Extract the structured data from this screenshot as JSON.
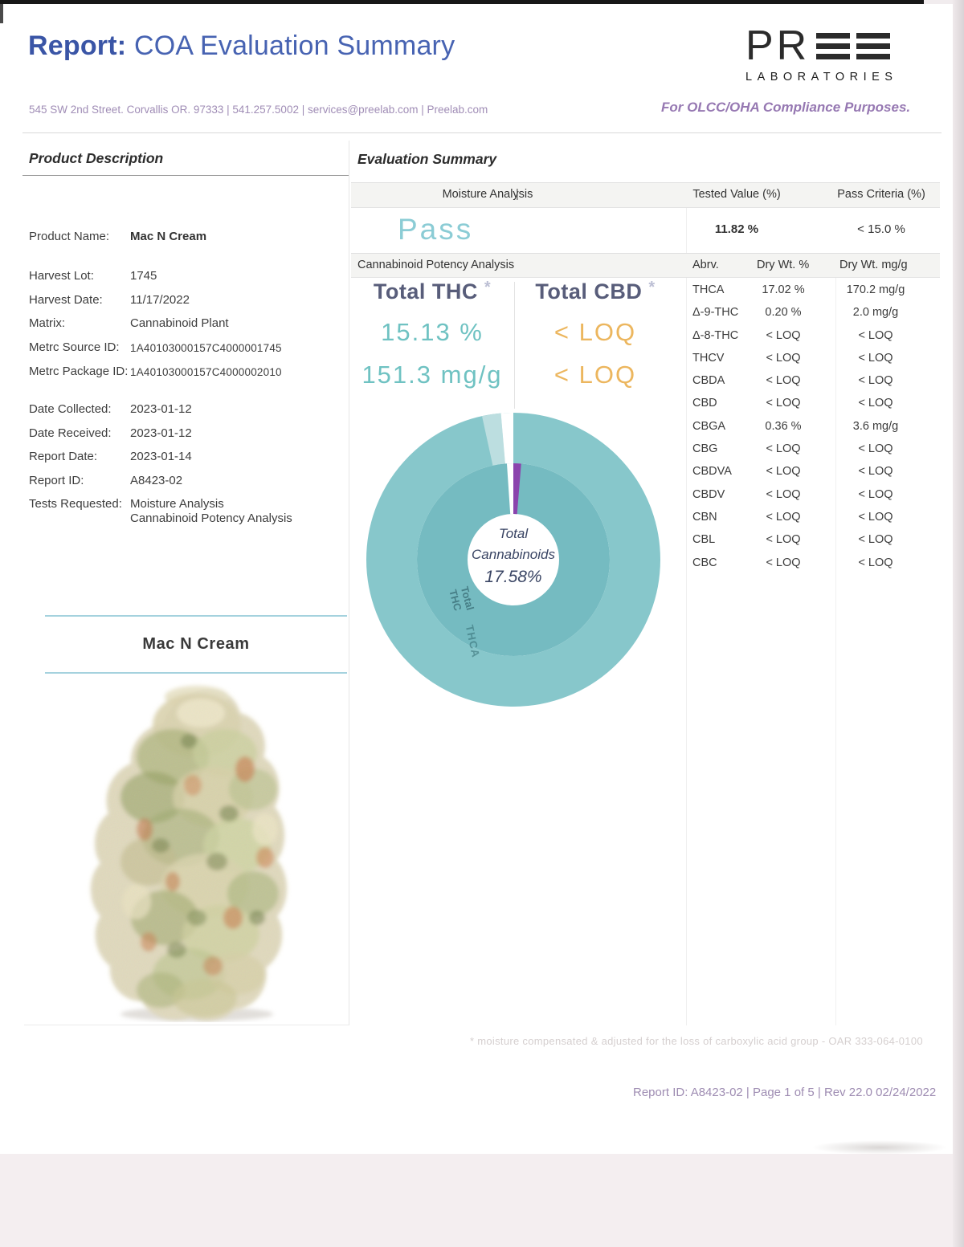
{
  "header": {
    "report_label": "Report:",
    "report_title": "COA Evaluation Summary",
    "address": "545 SW 2nd Street. Corvallis OR. 97333  |  541.257.5002  | services@preelab.com  |  Preelab.com",
    "compliance": "For OLCC/OHA Compliance Purposes.",
    "logo": {
      "letters": "PR",
      "sub": "LABORATORIES"
    }
  },
  "product": {
    "section_title": "Product Description",
    "fields": [
      {
        "label": "Product Name:",
        "value": "Mac N Cream",
        "bold": true
      },
      {
        "label": "Harvest Lot:",
        "value": "1745",
        "gap": 1
      },
      {
        "label": "Harvest Date:",
        "value": "11/17/2022"
      },
      {
        "label": "Matrix:",
        "value": "Cannabinoid Plant"
      },
      {
        "label": "Metrc Source ID:",
        "value": "1A40103000157C4000001745",
        "small": true
      },
      {
        "label": "Metrc Package ID:",
        "value": "1A40103000157C4000002010",
        "small": true
      },
      {
        "label": "Date Collected:",
        "value": "2023-01-12",
        "gap": 2
      },
      {
        "label": "Date Received:",
        "value": "2023-01-12"
      },
      {
        "label": "Report Date:",
        "value": "2023-01-14"
      },
      {
        "label": "Report ID:",
        "value": "A8423-02"
      },
      {
        "label": "Tests Requested:",
        "value": "Moisture Analysis\nCannabinoid Potency Analysis"
      }
    ],
    "photo_title": "Mac N Cream"
  },
  "evaluation": {
    "section_title": "Evaluation Summary",
    "moisture": {
      "label": "Moisture Analysis",
      "separator": "|",
      "tested_header": "Tested Value (%)",
      "criteria_header": "Pass Criteria (%)",
      "result": "Pass",
      "tested_value": "11.82 %",
      "pass_criteria": "< 15.0 %"
    },
    "potency": {
      "label": "Cannabinoid Potency Analysis",
      "abrv_header": "Abrv.",
      "dry_pct_header": "Dry Wt. %",
      "dry_mgg_header": "Dry Wt. mg/g",
      "total_thc": {
        "label": "Total THC",
        "star": "*",
        "pct": "15.13 %",
        "mgg": "151.3 mg/g"
      },
      "total_cbd": {
        "label": "Total CBD",
        "star": "*",
        "pct": "< LOQ",
        "mgg": "< LOQ"
      },
      "rows": [
        {
          "abrv": "THCA",
          "pct": "17.02 %",
          "mgg": "170.2 mg/g"
        },
        {
          "abrv": "Δ-9-THC",
          "pct": "0.20 %",
          "mgg": "2.0 mg/g"
        },
        {
          "abrv": "Δ-8-THC",
          "pct": "< LOQ",
          "mgg": "< LOQ"
        },
        {
          "abrv": "THCV",
          "pct": "< LOQ",
          "mgg": "< LOQ"
        },
        {
          "abrv": "CBDA",
          "pct": "< LOQ",
          "mgg": "< LOQ"
        },
        {
          "abrv": "CBD",
          "pct": "< LOQ",
          "mgg": "< LOQ"
        },
        {
          "abrv": "CBGA",
          "pct": "0.36 %",
          "mgg": "3.6 mg/g"
        },
        {
          "abrv": "CBG",
          "pct": "< LOQ",
          "mgg": "< LOQ"
        },
        {
          "abrv": "CBDVA",
          "pct": "< LOQ",
          "mgg": "< LOQ"
        },
        {
          "abrv": "CBDV",
          "pct": "< LOQ",
          "mgg": "< LOQ"
        },
        {
          "abrv": "CBN",
          "pct": "< LOQ",
          "mgg": "< LOQ"
        },
        {
          "abrv": "CBL",
          "pct": "< LOQ",
          "mgg": "< LOQ"
        },
        {
          "abrv": "CBC",
          "pct": "< LOQ",
          "mgg": "< LOQ"
        }
      ]
    }
  },
  "chart_data": {
    "type": "pie",
    "variant": "double-ring-donut",
    "title": "Total Cannabinoids",
    "total_pct": 17.58,
    "center_label": {
      "line1": "Total",
      "line2": "Cannabinoids",
      "line3": "17.58%"
    },
    "inner_ring": [
      {
        "label": "Total THC",
        "value": 15.13,
        "color": "#75bbc1"
      },
      {
        "label": "Δ-9-THC",
        "value": 0.2,
        "color": "#8b44ad"
      }
    ],
    "outer_ring": [
      {
        "label": "THCA",
        "value": 17.02,
        "color": "#87c7cb"
      },
      {
        "label": "CBGA",
        "value": 0.36,
        "color": "#bcdee0"
      }
    ],
    "ring_labels": [
      "Total THC",
      "THCA"
    ],
    "legend_position": "in-ring",
    "grid": false
  },
  "footer": {
    "footnote": "* moisture compensated & adjusted for the loss of carboxylic acid group - OAR 333-064-0100",
    "page_line": "Report ID: A8423-02   |   Page 1 of 5   |   Rev 22.0  02/24/2022"
  }
}
